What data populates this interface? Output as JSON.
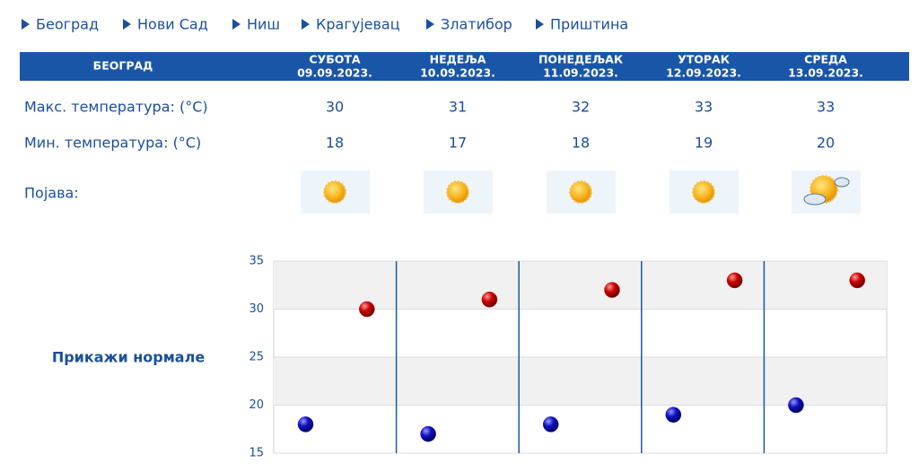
{
  "nav": [
    "Београд",
    "Нови Сад",
    "Ниш",
    "Крагујевац",
    "Златибор",
    "Приштина"
  ],
  "table": {
    "city": "БЕОГРАД",
    "days": [
      {
        "day": "СУБОТА",
        "date": "09.09.2023."
      },
      {
        "day": "НЕДЕЉА",
        "date": "10.09.2023."
      },
      {
        "day": "ПОНЕДЕЉАК",
        "date": "11.09.2023."
      },
      {
        "day": "УТОРАК",
        "date": "12.09.2023."
      },
      {
        "day": "СРЕДА",
        "date": "13.09.2023."
      }
    ],
    "rows": [
      {
        "label": "Макс. температура: (°C)",
        "values": [
          30,
          31,
          32,
          33,
          33
        ]
      },
      {
        "label": "Мин. температура: (°C)",
        "values": [
          18,
          17,
          18,
          19,
          20
        ]
      },
      {
        "label": "Појава:"
      }
    ]
  },
  "toggle": "Прикажи нормале",
  "chart_data": {
    "type": "scatter",
    "series": [
      {
        "color": "#cc0000",
        "values": [
          30,
          31,
          32,
          33,
          33
        ]
      },
      {
        "color": "#1010c0",
        "values": [
          18,
          17,
          18,
          19,
          20
        ]
      }
    ],
    "ylim": [
      15,
      35
    ],
    "yticks": [
      15,
      20,
      25,
      30,
      35
    ],
    "grid": true
  }
}
